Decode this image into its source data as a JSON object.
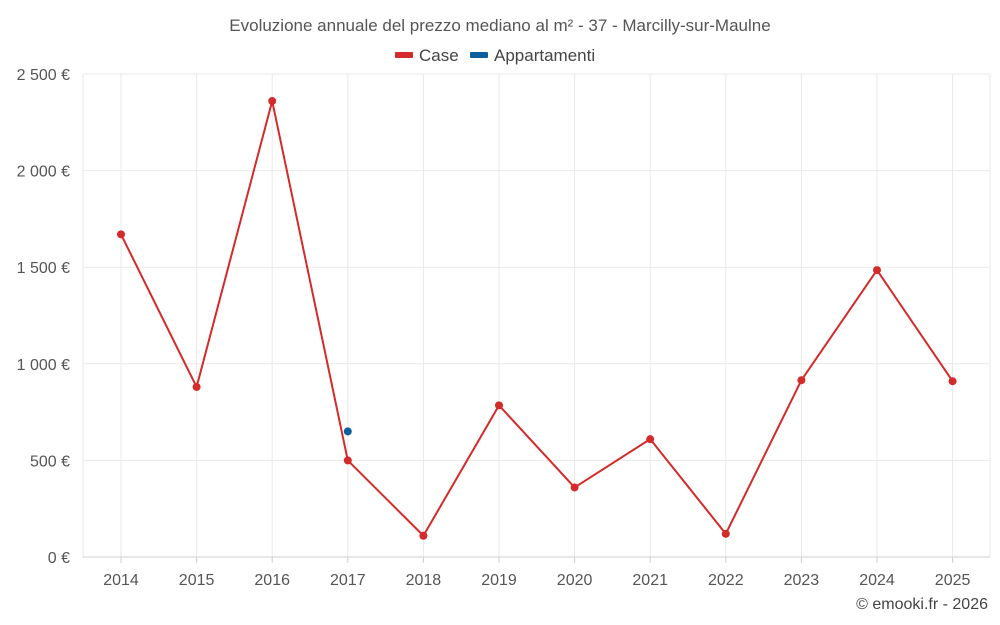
{
  "chart_data": {
    "type": "line",
    "title": "Evoluzione annuale del prezzo mediano al m² - 37 - Marcilly-sur-Maulne",
    "x": [
      "2014",
      "2015",
      "2016",
      "2017",
      "2018",
      "2019",
      "2020",
      "2021",
      "2022",
      "2023",
      "2024",
      "2025"
    ],
    "series": [
      {
        "name": "Case",
        "color": "#d42a2a",
        "values": [
          1670,
          880,
          2360,
          500,
          110,
          785,
          360,
          610,
          120,
          915,
          1485,
          910
        ]
      },
      {
        "name": "Appartamenti",
        "color": "#0b5f9e",
        "values": [
          null,
          null,
          null,
          650,
          null,
          null,
          null,
          null,
          null,
          null,
          null,
          null
        ]
      }
    ],
    "ylim": [
      0,
      2500
    ],
    "yticks": [
      0,
      500,
      1000,
      1500,
      2000,
      2500
    ],
    "ytick_labels": [
      "0 €",
      "500 €",
      "1 000 €",
      "1 500 €",
      "2 000 €",
      "2 500 €"
    ],
    "xlabel": "",
    "ylabel": "",
    "grid": true,
    "legend_position": "top-center"
  },
  "credit": "© emooki.fr - 2026"
}
